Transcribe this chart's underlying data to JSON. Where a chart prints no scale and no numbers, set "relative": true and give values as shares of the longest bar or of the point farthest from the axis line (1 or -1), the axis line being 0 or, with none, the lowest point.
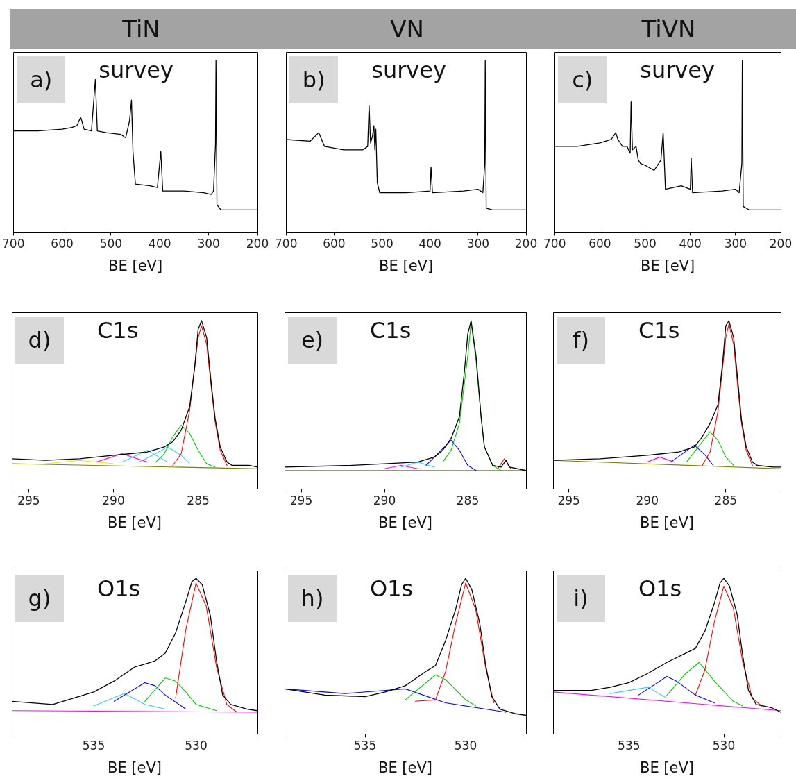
{
  "chart_data": [
    {
      "type": "line",
      "relative": true,
      "title": "TiN",
      "xlabel": "BE [eV]",
      "annotations": [
        "a)",
        "survey"
      ],
      "xlim": [
        700,
        200
      ],
      "xticks": [
        700,
        600,
        500,
        400,
        300,
        200
      ],
      "tick_labels": "x",
      "series": [
        {
          "color": "#000000",
          "x": [
            700,
            650,
            600,
            580,
            570,
            562,
            555,
            540,
            532,
            528,
            510,
            480,
            470,
            462,
            458,
            455,
            450,
            420,
            405,
            398,
            394,
            350,
            310,
            295,
            290,
            286,
            285,
            283,
            275,
            250,
            200
          ],
          "values": [
            0.59,
            0.59,
            0.6,
            0.61,
            0.62,
            0.67,
            0.6,
            0.59,
            0.89,
            0.59,
            0.58,
            0.57,
            0.55,
            0.65,
            0.77,
            0.47,
            0.28,
            0.27,
            0.26,
            0.47,
            0.24,
            0.24,
            0.23,
            0.22,
            0.24,
            0.51,
            1,
            0.16,
            0.13,
            0.13,
            0.13
          ]
        }
      ]
    },
    {
      "type": "line",
      "relative": true,
      "title": "VN",
      "xlabel": "BE [eV]",
      "annotations": [
        "b)",
        "survey"
      ],
      "xlim": [
        700,
        200
      ],
      "xticks": [
        700,
        600,
        500,
        400,
        300,
        200
      ],
      "tick_labels": "x",
      "series": [
        {
          "color": "#000000",
          "x": [
            700,
            650,
            632,
            620,
            580,
            540,
            530,
            527,
            524,
            520,
            517,
            515,
            513,
            510,
            505,
            450,
            400,
            398,
            395,
            330,
            300,
            290,
            286,
            285,
            283,
            270,
            200
          ],
          "values": [
            0.54,
            0.53,
            0.58,
            0.5,
            0.48,
            0.48,
            0.5,
            0.74,
            0.52,
            0.56,
            0.62,
            0.48,
            0.6,
            0.29,
            0.23,
            0.23,
            0.24,
            0.38,
            0.23,
            0.24,
            0.25,
            0.23,
            0.4,
            1,
            0.14,
            0.13,
            0.13
          ]
        }
      ]
    },
    {
      "type": "line",
      "relative": true,
      "title": "TiVN",
      "xlabel": "BE [eV]",
      "annotations": [
        "c)",
        "survey"
      ],
      "xlim": [
        700,
        200
      ],
      "xticks": [
        700,
        600,
        500,
        400,
        300,
        200
      ],
      "tick_labels": "x",
      "series": [
        {
          "color": "#000000",
          "x": [
            700,
            650,
            600,
            575,
            565,
            560,
            550,
            540,
            533,
            531,
            528,
            520,
            515,
            510,
            500,
            480,
            470,
            465,
            460,
            455,
            420,
            400,
            398,
            395,
            330,
            300,
            292,
            286,
            285,
            283,
            270,
            200
          ],
          "values": [
            0.5,
            0.5,
            0.52,
            0.54,
            0.58,
            0.54,
            0.5,
            0.5,
            0.46,
            0.76,
            0.48,
            0.5,
            0.42,
            0.4,
            0.39,
            0.36,
            0.4,
            0.42,
            0.58,
            0.25,
            0.27,
            0.25,
            0.43,
            0.23,
            0.24,
            0.25,
            0.23,
            0.4,
            1,
            0.15,
            0.13,
            0.13
          ]
        }
      ]
    },
    {
      "type": "line",
      "relative": true,
      "xlabel": "BE [eV]",
      "annotations": [
        "d)",
        "C1s"
      ],
      "xlim": [
        296,
        281.5
      ],
      "xticks": [
        295,
        290,
        285
      ],
      "tick_labels": "x",
      "series": [
        {
          "color": "#000000",
          "x": [
            296,
            294,
            292,
            290,
            289,
            288,
            287,
            286.5,
            286,
            285.5,
            285.2,
            285,
            284.8,
            284.5,
            284.2,
            284,
            283.7,
            283.3,
            283,
            282,
            281.5
          ],
          "values": [
            0.18,
            0.17,
            0.18,
            0.2,
            0.21,
            0.22,
            0.25,
            0.28,
            0.35,
            0.49,
            0.73,
            0.95,
            1,
            0.9,
            0.6,
            0.42,
            0.25,
            0.16,
            0.14,
            0.14,
            0.13
          ]
        },
        {
          "color": "#ff0000",
          "x": [
            286.5,
            286,
            285.5,
            285,
            284.8,
            284.5,
            284.2,
            284,
            283.7,
            283.3
          ],
          "values": [
            0.14,
            0.21,
            0.47,
            0.9,
            0.97,
            0.86,
            0.58,
            0.4,
            0.23,
            0.14
          ]
        },
        {
          "color": "#00cc00",
          "x": [
            287.5,
            287,
            286.5,
            286,
            285.5,
            285,
            284.5,
            284
          ],
          "values": [
            0.16,
            0.21,
            0.31,
            0.38,
            0.33,
            0.23,
            0.15,
            0.13
          ]
        },
        {
          "color": "#33ccff",
          "x": [
            288.5,
            287.5,
            286.8,
            286,
            285.5
          ],
          "values": [
            0.16,
            0.21,
            0.25,
            0.2,
            0.15
          ]
        },
        {
          "color": "#33ccff",
          "x": [
            289.5,
            288,
            286.8
          ],
          "values": [
            0.16,
            0.23,
            0.16
          ]
        },
        {
          "color": "#ff00ff",
          "x": [
            291,
            289.5,
            288
          ],
          "values": [
            0.16,
            0.21,
            0.16
          ]
        },
        {
          "color": "#e6e600",
          "x": [
            294,
            292,
            290
          ],
          "values": [
            0.15,
            0.17,
            0.15
          ]
        },
        {
          "color": "#808000",
          "x": [
            296,
            281.5
          ],
          "values": [
            0.15,
            0.12
          ]
        }
      ]
    },
    {
      "type": "line",
      "relative": true,
      "xlabel": "BE [eV]",
      "annotations": [
        "e)",
        "C1s"
      ],
      "xlim": [
        296,
        281.5
      ],
      "xticks": [
        295,
        290,
        285
      ],
      "tick_labels": "x",
      "series": [
        {
          "color": "#000000",
          "x": [
            296,
            292,
            290,
            288,
            287,
            286.5,
            286,
            285.5,
            285.2,
            285,
            284.8,
            284.5,
            284.2,
            284,
            283.5,
            283,
            282.7,
            282.5,
            281.5
          ],
          "values": [
            0.13,
            0.14,
            0.15,
            0.16,
            0.19,
            0.23,
            0.3,
            0.43,
            0.7,
            0.92,
            1,
            0.79,
            0.43,
            0.25,
            0.14,
            0.13,
            0.17,
            0.13,
            0.11
          ]
        },
        {
          "color": "#00cc00",
          "x": [
            286.5,
            286,
            285.5,
            285,
            284.8,
            284.5,
            284.2,
            284,
            283.5,
            283
          ],
          "values": [
            0.16,
            0.23,
            0.39,
            0.79,
            0.99,
            0.76,
            0.43,
            0.25,
            0.14,
            0.11
          ]
        },
        {
          "color": "#0000ff",
          "x": [
            287.5,
            286.8,
            286,
            285.5,
            285,
            284.5
          ],
          "values": [
            0.14,
            0.21,
            0.29,
            0.23,
            0.14,
            0.11
          ]
        },
        {
          "color": "#33ccff",
          "x": [
            289,
            288,
            287
          ],
          "values": [
            0.13,
            0.16,
            0.13
          ]
        },
        {
          "color": "#ff00ff",
          "x": [
            290,
            289,
            288
          ],
          "values": [
            0.12,
            0.14,
            0.12
          ]
        },
        {
          "color": "#ff0000",
          "x": [
            283.2,
            282.8,
            282.4
          ],
          "values": [
            0.12,
            0.18,
            0.12
          ]
        },
        {
          "color": "#808000",
          "x": [
            296,
            281.5
          ],
          "values": [
            0.11,
            0.11
          ]
        }
      ]
    },
    {
      "type": "line",
      "relative": true,
      "xlabel": "BE [eV]",
      "annotations": [
        "f)",
        "C1s"
      ],
      "xlim": [
        296,
        281.5
      ],
      "xticks": [
        295,
        290,
        285
      ],
      "tick_labels": "x",
      "series": [
        {
          "color": "#000000",
          "x": [
            296,
            293,
            290,
            289,
            288,
            287,
            286.5,
            286,
            285.5,
            285.2,
            285,
            284.8,
            284.5,
            284.2,
            284,
            283.7,
            283.3,
            283,
            282,
            281.5
          ],
          "values": [
            0.17,
            0.18,
            0.2,
            0.21,
            0.22,
            0.25,
            0.31,
            0.39,
            0.5,
            0.75,
            0.97,
            1,
            0.9,
            0.61,
            0.41,
            0.25,
            0.16,
            0.14,
            0.13,
            0.13
          ]
        },
        {
          "color": "#ff0000",
          "x": [
            286.5,
            286,
            285.5,
            285,
            284.8,
            284.5,
            284.2,
            284,
            283.7,
            283.3
          ],
          "values": [
            0.14,
            0.22,
            0.46,
            0.9,
            0.98,
            0.86,
            0.57,
            0.39,
            0.23,
            0.14
          ]
        },
        {
          "color": "#00cc00",
          "x": [
            287.5,
            287,
            286,
            285.5,
            285,
            284.5
          ],
          "values": [
            0.16,
            0.22,
            0.34,
            0.29,
            0.19,
            0.14
          ]
        },
        {
          "color": "#0000ff",
          "x": [
            288.5,
            287,
            286.3,
            285.8
          ],
          "values": [
            0.16,
            0.26,
            0.2,
            0.14
          ]
        },
        {
          "color": "#ff00ff",
          "x": [
            290,
            289.2,
            288.3
          ],
          "values": [
            0.16,
            0.19,
            0.16
          ]
        },
        {
          "color": "#808000",
          "x": [
            296,
            281.5
          ],
          "values": [
            0.17,
            0.12
          ]
        }
      ]
    },
    {
      "type": "line",
      "relative": true,
      "xlabel": "BE [eV]",
      "annotations": [
        "g)",
        "O1s"
      ],
      "xlim": [
        539,
        527
      ],
      "xticks": [
        535,
        530
      ],
      "tick_labels": "x",
      "series": [
        {
          "color": "#000000",
          "x": [
            539,
            537,
            536,
            535,
            534,
            533,
            532.5,
            532,
            531.5,
            531,
            530.5,
            530.2,
            530,
            529.7,
            529.3,
            529,
            528.7,
            528.3,
            527.5,
            527
          ],
          "values": [
            0.21,
            0.19,
            0.23,
            0.27,
            0.34,
            0.43,
            0.45,
            0.47,
            0.52,
            0.65,
            0.85,
            0.98,
            1,
            0.96,
            0.76,
            0.47,
            0.25,
            0.19,
            0.16,
            0.15
          ]
        },
        {
          "color": "#ff0000",
          "x": [
            531,
            530.5,
            530,
            529.5,
            529,
            528.5,
            528
          ],
          "values": [
            0.23,
            0.67,
            0.97,
            0.82,
            0.43,
            0.19,
            0.14
          ]
        },
        {
          "color": "#00cc00",
          "x": [
            532.5,
            531.5,
            531,
            530.5,
            530,
            529
          ],
          "values": [
            0.21,
            0.36,
            0.34,
            0.27,
            0.19,
            0.15
          ]
        },
        {
          "color": "#0000ff",
          "x": [
            534,
            532.5,
            532,
            531.5,
            530.5
          ],
          "values": [
            0.21,
            0.33,
            0.31,
            0.25,
            0.16
          ]
        },
        {
          "color": "#33ccff",
          "x": [
            535,
            533.5,
            532.5,
            531.5
          ],
          "values": [
            0.18,
            0.26,
            0.19,
            0.16
          ]
        },
        {
          "color": "#ff00ff",
          "x": [
            539,
            527
          ],
          "values": [
            0.15,
            0.14
          ]
        }
      ]
    },
    {
      "type": "line",
      "relative": true,
      "xlabel": "BE [eV]",
      "annotations": [
        "h)",
        "O1s"
      ],
      "xlim": [
        539,
        527
      ],
      "xticks": [
        535,
        530
      ],
      "tick_labels": "x",
      "series": [
        {
          "color": "#000000",
          "x": [
            539,
            537,
            535,
            534,
            533,
            532,
            531.5,
            531,
            530.5,
            530.2,
            530,
            529.7,
            529.3,
            529,
            528.7,
            528.3,
            527.5,
            527
          ],
          "values": [
            0.29,
            0.25,
            0.24,
            0.27,
            0.31,
            0.4,
            0.44,
            0.6,
            0.8,
            0.96,
            1,
            0.93,
            0.71,
            0.44,
            0.24,
            0.16,
            0.13,
            0.12
          ]
        },
        {
          "color": "#ff0000",
          "x": [
            532.5,
            531.5,
            531,
            530.5,
            530,
            529.5,
            529,
            528.6
          ],
          "values": [
            0.21,
            0.22,
            0.4,
            0.71,
            0.97,
            0.8,
            0.42,
            0.2
          ]
        },
        {
          "color": "#00cc00",
          "x": [
            533,
            531.5,
            531,
            530,
            529.5
          ],
          "values": [
            0.22,
            0.38,
            0.35,
            0.22,
            0.18
          ]
        },
        {
          "color": "#0000ff",
          "x": [
            539,
            536,
            533,
            531,
            528
          ],
          "values": [
            0.29,
            0.26,
            0.29,
            0.2,
            0.14
          ]
        }
      ]
    },
    {
      "type": "line",
      "relative": true,
      "xlabel": "BE [eV]",
      "annotations": [
        "i)",
        "O1s"
      ],
      "xlim": [
        539,
        527
      ],
      "xticks": [
        535,
        530
      ],
      "tick_labels": "x",
      "series": [
        {
          "color": "#000000",
          "x": [
            539,
            537,
            536,
            535,
            534,
            533,
            532,
            531.5,
            531,
            530.5,
            530.2,
            530,
            529.7,
            529.3,
            529,
            528.7,
            528.3,
            527.5,
            527
          ],
          "values": [
            0.28,
            0.28,
            0.3,
            0.33,
            0.39,
            0.46,
            0.52,
            0.55,
            0.66,
            0.84,
            0.97,
            1,
            0.95,
            0.77,
            0.5,
            0.28,
            0.19,
            0.17,
            0.14
          ]
        },
        {
          "color": "#ff0000",
          "x": [
            531.5,
            531,
            530.5,
            530,
            529.5,
            529,
            528.5,
            528
          ],
          "values": [
            0.25,
            0.41,
            0.72,
            0.95,
            0.81,
            0.46,
            0.23,
            0.18
          ]
        },
        {
          "color": "#00cc00",
          "x": [
            533,
            532,
            531.3,
            530.5,
            529.5,
            529
          ],
          "values": [
            0.25,
            0.39,
            0.46,
            0.34,
            0.21,
            0.18
          ]
        },
        {
          "color": "#0000ff",
          "x": [
            534.5,
            533,
            532.5,
            531.5,
            530.5
          ],
          "values": [
            0.25,
            0.37,
            0.34,
            0.25,
            0.2
          ]
        },
        {
          "color": "#33ccff",
          "x": [
            536,
            534,
            533
          ],
          "values": [
            0.26,
            0.3,
            0.23
          ]
        },
        {
          "color": "#ff00ff",
          "x": [
            539,
            527
          ],
          "values": [
            0.27,
            0.15
          ]
        }
      ]
    }
  ]
}
